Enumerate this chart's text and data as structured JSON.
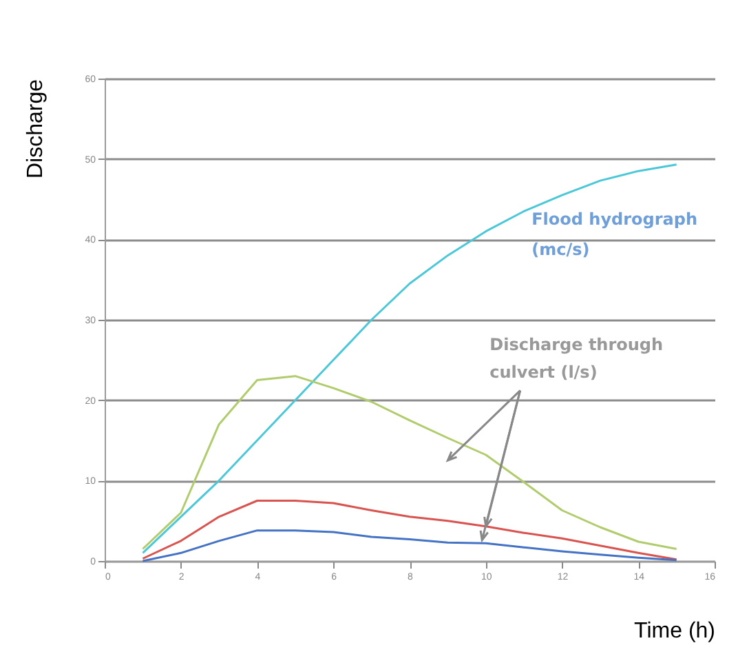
{
  "chart_data": {
    "type": "line",
    "xlabel": "Time (h)",
    "ylabel": "Discharge",
    "x": [
      1,
      2,
      3,
      4,
      5,
      6,
      7,
      8,
      9,
      10,
      11,
      12,
      13,
      14,
      15
    ],
    "series": [
      {
        "color": "#4bc8d8",
        "values": [
          1,
          5.5,
          10,
          15,
          20,
          25,
          30,
          34.5,
          38,
          41,
          43.5,
          45.5,
          47.3,
          48.5,
          49.3
        ]
      },
      {
        "color": "#b0cc6c",
        "values": [
          1.5,
          6,
          17,
          22.5,
          23,
          21.5,
          19.8,
          17.5,
          15.3,
          13.2,
          9.8,
          6.3,
          4.2,
          2.4,
          1.5
        ]
      },
      {
        "color": "#d9534f",
        "values": [
          0.3,
          2.5,
          5.5,
          7.5,
          7.5,
          7.2,
          6.3,
          5.5,
          5,
          4.3,
          3.5,
          2.8,
          1.9,
          1,
          0.2
        ]
      },
      {
        "color": "#4472c4",
        "values": [
          0,
          1,
          2.5,
          3.8,
          3.8,
          3.6,
          3,
          2.7,
          2.3,
          2.2,
          1.7,
          1.2,
          0.8,
          0.4,
          0.1
        ]
      }
    ],
    "xlim": [
      0,
      16
    ],
    "xticks": [
      0,
      2,
      4,
      6,
      8,
      10,
      12,
      14,
      16
    ],
    "ylim": [
      0,
      60
    ],
    "yticks": [
      0,
      10,
      20,
      30,
      40,
      50,
      60
    ],
    "grid": "y",
    "legend": false,
    "marker": "none",
    "line_style": "solid",
    "annotations": [
      "Flood hydrograph\n(mc/s)",
      {
        "text": "Discharge through\nculvert (l/s)",
        "x": 10,
        "y": 4.3
      }
    ]
  }
}
